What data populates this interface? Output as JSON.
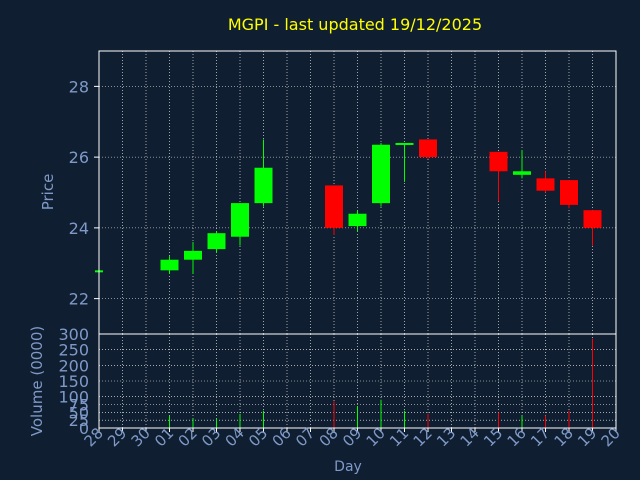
{
  "title": "MGPI - last updated 19/12/2025",
  "colors": {
    "background": "#0f1e30",
    "frame": "#ffffff",
    "grid": "#ffffff",
    "title": "#ffff00",
    "axis_text": "#7f9ac8",
    "up": "#00ff00",
    "down": "#ff0000"
  },
  "chart_data": {
    "type": "candlestick",
    "xlabel": "Day",
    "days": [
      "28",
      "29",
      "30",
      "01",
      "02",
      "03",
      "04",
      "05",
      "06",
      "07",
      "08",
      "09",
      "10",
      "11",
      "12",
      "13",
      "14",
      "15",
      "16",
      "17",
      "18",
      "19",
      "20"
    ],
    "price": {
      "ylabel": "Price",
      "ylim": [
        21.0,
        29.0
      ],
      "yticks": [
        "22",
        "24",
        "26",
        "28"
      ],
      "grid": true,
      "candles": [
        {
          "day": "28",
          "open": 22.8,
          "high": 22.8,
          "low": 22.8,
          "close": 22.8
        },
        {
          "day": "01",
          "open": 22.8,
          "high": 23.2,
          "low": 22.7,
          "close": 23.1
        },
        {
          "day": "02",
          "open": 23.1,
          "high": 23.6,
          "low": 22.7,
          "close": 23.35
        },
        {
          "day": "03",
          "open": 23.4,
          "high": 23.9,
          "low": 23.3,
          "close": 23.85
        },
        {
          "day": "04",
          "open": 23.75,
          "high": 24.7,
          "low": 23.5,
          "close": 24.7
        },
        {
          "day": "05",
          "open": 24.7,
          "high": 26.5,
          "low": 24.6,
          "close": 25.7
        },
        {
          "day": "08",
          "open": 25.2,
          "high": 25.2,
          "low": 23.8,
          "close": 24.0
        },
        {
          "day": "09",
          "open": 24.05,
          "high": 24.5,
          "low": 23.9,
          "close": 24.4
        },
        {
          "day": "10",
          "open": 24.7,
          "high": 26.4,
          "low": 24.6,
          "close": 26.35
        },
        {
          "day": "11",
          "open": 26.35,
          "high": 26.4,
          "low": 25.3,
          "close": 26.4
        },
        {
          "day": "12",
          "open": 26.5,
          "high": 26.5,
          "low": 25.95,
          "close": 26.0
        },
        {
          "day": "15",
          "open": 26.15,
          "high": 26.15,
          "low": 24.75,
          "close": 25.6
        },
        {
          "day": "16",
          "open": 25.5,
          "high": 26.2,
          "low": 25.4,
          "close": 25.6
        },
        {
          "day": "17",
          "open": 25.4,
          "high": 25.6,
          "low": 25.0,
          "close": 25.05
        },
        {
          "day": "18",
          "open": 25.35,
          "high": 25.35,
          "low": 24.55,
          "close": 24.65
        },
        {
          "day": "19",
          "open": 24.5,
          "high": 24.5,
          "low": 23.5,
          "close": 24.0
        }
      ]
    },
    "volume": {
      "ylabel": "Volume (0000)",
      "ylim": [
        0,
        300
      ],
      "yticks": [
        "0",
        "25",
        "50",
        "75",
        "100",
        "150",
        "200",
        "250",
        "300"
      ],
      "grid": true,
      "bars": [
        {
          "day": "01",
          "value": 40,
          "direction": "up"
        },
        {
          "day": "02",
          "value": 30,
          "direction": "up"
        },
        {
          "day": "03",
          "value": 30,
          "direction": "up"
        },
        {
          "day": "04",
          "value": 45,
          "direction": "up"
        },
        {
          "day": "05",
          "value": 55,
          "direction": "up"
        },
        {
          "day": "08",
          "value": 85,
          "direction": "down"
        },
        {
          "day": "09",
          "value": 70,
          "direction": "up"
        },
        {
          "day": "10",
          "value": 90,
          "direction": "up"
        },
        {
          "day": "11",
          "value": 55,
          "direction": "up"
        },
        {
          "day": "12",
          "value": 45,
          "direction": "down"
        },
        {
          "day": "15",
          "value": 50,
          "direction": "down"
        },
        {
          "day": "16",
          "value": 40,
          "direction": "up"
        },
        {
          "day": "17",
          "value": 40,
          "direction": "down"
        },
        {
          "day": "18",
          "value": 55,
          "direction": "down"
        },
        {
          "day": "19",
          "value": 285,
          "direction": "down"
        }
      ]
    }
  }
}
